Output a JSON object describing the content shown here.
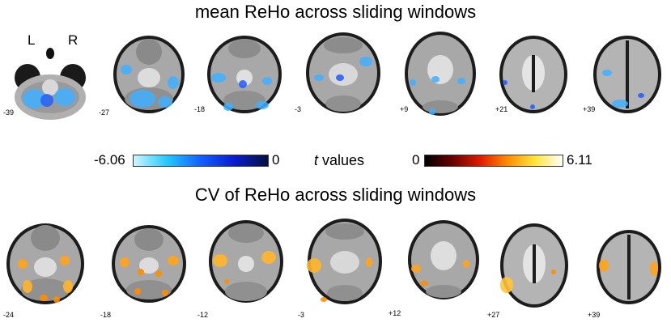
{
  "top_title": "mean ReHo across sliding windows",
  "bottom_title": "CV of ReHo across sliding windows",
  "orientation": {
    "left": "L",
    "right": "R"
  },
  "top_slices": [
    "-39",
    "-27",
    "-18",
    "-3",
    "+9",
    "+21",
    "+39"
  ],
  "bottom_slices": [
    "-24",
    "-18",
    "-12",
    "-3",
    "+12",
    "+27",
    "+39"
  ],
  "colorbar": {
    "negative": {
      "min": "-6.06",
      "max": "0"
    },
    "positive": {
      "min": "0",
      "max": "6.11"
    },
    "label_italic": "t",
    "label_rest": " values"
  },
  "colors": {
    "negative_scale": [
      "#ccf6ff",
      "#22c8ff",
      "#1060ff",
      "#0a1bd0",
      "#051040"
    ],
    "positive_scale": [
      "#000000",
      "#6a0000",
      "#e01a00",
      "#ff8c00",
      "#ffe63a",
      "#ffffff"
    ]
  }
}
